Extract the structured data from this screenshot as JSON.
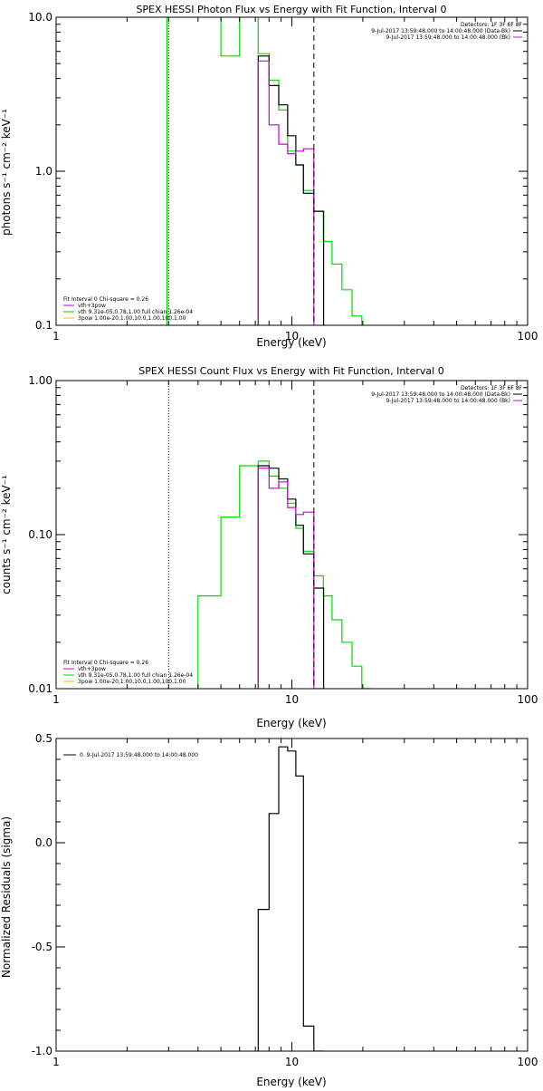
{
  "chart_data": [
    {
      "type": "line",
      "title": "SPEX HESSI Photon Flux vs Energy with Fit Function, Interval 0",
      "xlabel": "Energy (keV)",
      "ylabel": "photons s⁻¹ cm⁻² keV⁻¹",
      "x_scale": "log",
      "y_scale": "log",
      "xlim": [
        1,
        100
      ],
      "ylim": [
        0.1,
        10
      ],
      "x_ticks": [
        {
          "value": 1,
          "label": "1"
        },
        {
          "value": 10,
          "label": "10"
        },
        {
          "value": 100,
          "label": "100"
        }
      ],
      "y_ticks": [
        {
          "value": 0.1,
          "label": "0.1"
        },
        {
          "value": 1,
          "label": "1.0"
        },
        {
          "value": 10,
          "label": "10.0"
        }
      ],
      "vlines": [
        {
          "x": 3,
          "style": "dotted",
          "color": "#000000"
        },
        {
          "x": 12.4,
          "style": "dashed",
          "color": "#000000"
        }
      ],
      "legend_top_right": {
        "header": "Detectors: 1F 3F 6F 8F",
        "entries": [
          {
            "text": "9-Jul-2017 13:59:48.000 to 14:00:48.000 (Data-Bk)",
            "color": "#000000"
          },
          {
            "text": "9-Jul-2017 13:59:48.000 to 14:00:48.000 (Bk)",
            "color": "#cc00cc"
          }
        ]
      },
      "legend_bottom_left": {
        "header": "Fit Interval 0   Chi-square = 0.26",
        "entries": [
          {
            "text": "vth+3pow",
            "color": "#cc00cc"
          },
          {
            "text": "vth 9.31e-05,0.78,1.00  full chian 1.26e-04",
            "color": "#00cc00"
          },
          {
            "text": "3pow 1.00e-20,1.00,10.0,1.00,100,1.00",
            "color": "#e8c000"
          }
        ]
      },
      "series": [
        {
          "color": "#00dd00",
          "steps": [
            [
              2.95,
              12
            ],
            [
              4.0,
              10.2
            ],
            [
              5.0,
              5.6
            ],
            [
              6.0,
              12
            ],
            [
              7.2,
              5.8
            ],
            [
              8.0,
              3.9
            ],
            [
              8.8,
              2.5
            ],
            [
              9.6,
              1.35
            ],
            [
              10.4,
              1.1
            ],
            [
              11.2,
              0.75
            ],
            [
              12.4,
              0.55
            ],
            [
              13.6,
              0.35
            ],
            [
              14.8,
              0.25
            ],
            [
              16.3,
              0.17
            ],
            [
              18.0,
              0.115
            ],
            [
              19.8,
              0.08
            ]
          ]
        },
        {
          "color": "#000000",
          "steps": [
            [
              7.2,
              5.6
            ],
            [
              8.0,
              3.6
            ],
            [
              8.8,
              2.7
            ],
            [
              9.6,
              1.7
            ],
            [
              10.4,
              1.1
            ],
            [
              11.2,
              0.72
            ],
            [
              12.4,
              0.55
            ]
          ]
        },
        {
          "color": "#cc00cc",
          "steps": [
            [
              7.2,
              5.2
            ],
            [
              8.0,
              2.0
            ],
            [
              8.8,
              1.5
            ],
            [
              9.6,
              1.3
            ],
            [
              10.4,
              1.35
            ],
            [
              11.2,
              1.4
            ],
            [
              12.4,
              0.08
            ]
          ]
        }
      ]
    },
    {
      "type": "line",
      "title": "SPEX HESSI Count Flux vs Energy with Fit Function, Interval 0",
      "xlabel": "Energy (keV)",
      "ylabel": "counts s⁻¹ cm⁻² keV⁻¹",
      "x_scale": "log",
      "y_scale": "log",
      "xlim": [
        1,
        100
      ],
      "ylim": [
        0.01,
        1
      ],
      "x_ticks": [
        {
          "value": 1,
          "label": "1"
        },
        {
          "value": 10,
          "label": "10"
        },
        {
          "value": 100,
          "label": "100"
        }
      ],
      "y_ticks": [
        {
          "value": 0.01,
          "label": "0.01"
        },
        {
          "value": 0.1,
          "label": "0.10"
        },
        {
          "value": 1,
          "label": "1.00"
        }
      ],
      "vlines": [
        {
          "x": 3,
          "style": "dotted",
          "color": "#000000"
        },
        {
          "x": 12.4,
          "style": "dashed",
          "color": "#000000"
        }
      ],
      "legend_top_right": {
        "header": "Detectors: 1F 3F 6F 8F",
        "entries": [
          {
            "text": "9-Jul-2017 13:59:48.000 to 14:00:48.000 (Data-Bk)",
            "color": "#000000"
          },
          {
            "text": "9-Jul-2017 13:59:48.000 to 14:00:48.000 (Bk)",
            "color": "#cc00cc"
          }
        ]
      },
      "legend_bottom_left": {
        "header": "Fit Interval 0   Chi-square = 0.26",
        "entries": [
          {
            "text": "vth+3pow",
            "color": "#cc00cc"
          },
          {
            "text": "vth 9.31e-05,0.78,1.00  full chian 1.26e-04",
            "color": "#00cc00"
          },
          {
            "text": "3pow 1.00e-20,1.00,10.0,1.00,100,1.00",
            "color": "#e8c000"
          }
        ]
      },
      "series": [
        {
          "color": "#00dd00",
          "steps": [
            [
              4.0,
              0.04
            ],
            [
              5.0,
              0.13
            ],
            [
              6.0,
              0.28
            ],
            [
              7.2,
              0.3
            ],
            [
              8.0,
              0.24
            ],
            [
              8.8,
              0.2
            ],
            [
              9.6,
              0.16
            ],
            [
              10.4,
              0.11
            ],
            [
              11.2,
              0.078
            ],
            [
              12.4,
              0.054
            ],
            [
              13.6,
              0.04
            ],
            [
              14.8,
              0.028
            ],
            [
              16.3,
              0.02
            ],
            [
              18.0,
              0.014
            ],
            [
              19.8,
              0.01
            ]
          ]
        },
        {
          "color": "#000000",
          "steps": [
            [
              7.2,
              0.28
            ],
            [
              8.0,
              0.27
            ],
            [
              8.8,
              0.23
            ],
            [
              9.6,
              0.17
            ],
            [
              10.4,
              0.115
            ],
            [
              11.2,
              0.075
            ],
            [
              12.4,
              0.045
            ]
          ]
        },
        {
          "color": "#cc00cc",
          "steps": [
            [
              7.2,
              0.27
            ],
            [
              8.0,
              0.2
            ],
            [
              8.8,
              0.22
            ],
            [
              9.6,
              0.15
            ],
            [
              10.4,
              0.135
            ],
            [
              11.2,
              0.14
            ],
            [
              12.4,
              0.01
            ]
          ]
        }
      ]
    },
    {
      "type": "line",
      "title": "",
      "xlabel": "Energy (keV)",
      "ylabel": "Normalized Residuals (sigma)",
      "x_scale": "log",
      "y_scale": "linear",
      "xlim": [
        1,
        100
      ],
      "ylim": [
        -1.0,
        0.5
      ],
      "x_ticks": [
        {
          "value": 1,
          "label": "1"
        },
        {
          "value": 10,
          "label": "10"
        },
        {
          "value": 100,
          "label": "100"
        }
      ],
      "y_ticks": [
        {
          "value": -1.0,
          "label": "-1.0"
        },
        {
          "value": -0.5,
          "label": "-0.5"
        },
        {
          "value": 0.0,
          "label": "0.0"
        },
        {
          "value": 0.5,
          "label": "0.5"
        }
      ],
      "vlines": [],
      "legend_top_left": {
        "entries": [
          {
            "text": "0. 9-Jul-2017 13:59:48.000 to 14:00:48.000",
            "color": "#000000"
          }
        ]
      },
      "series": [
        {
          "color": "#000000",
          "steps": [
            [
              7.2,
              -0.32
            ],
            [
              8.0,
              0.14
            ],
            [
              8.8,
              0.46
            ],
            [
              9.6,
              0.44
            ],
            [
              10.4,
              0.32
            ],
            [
              11.2,
              -0.88
            ],
            [
              12.4,
              -1.0
            ]
          ]
        }
      ]
    }
  ]
}
